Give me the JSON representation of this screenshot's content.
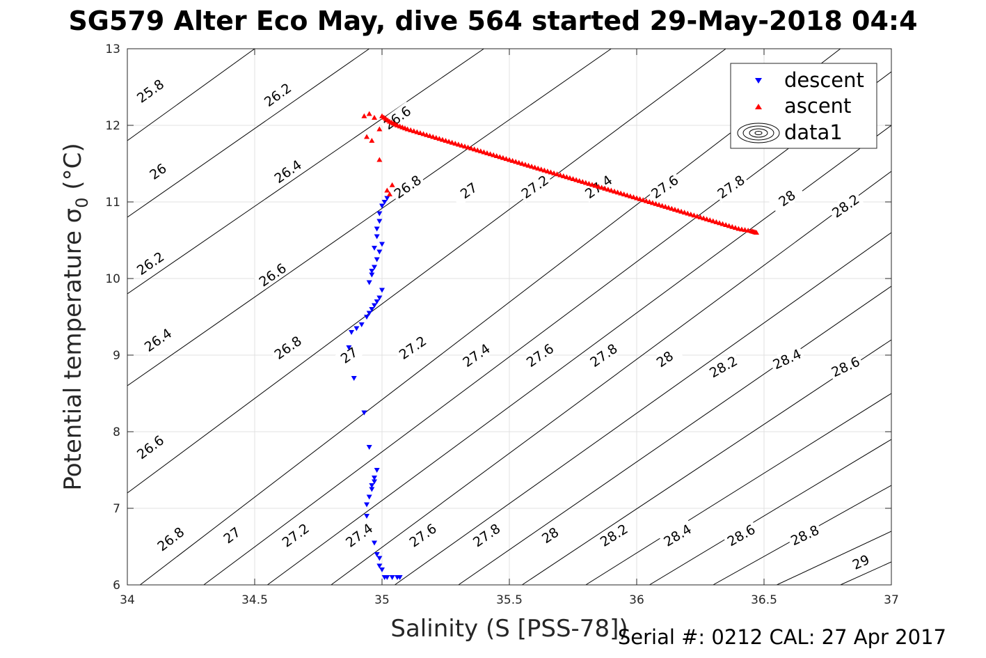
{
  "header": {
    "title": "SG579 Alter Eco May, dive 564 started 29-May-2018 04:4"
  },
  "footer": {
    "serial": "Serial #: 0212  CAL: 27 Apr 2017"
  },
  "chart_data": {
    "type": "scatter",
    "title": "SG579 Alter Eco May, dive 564 started 29-May-2018 04:4",
    "xlabel": "Salinity (S [PSS-78])",
    "ylabel": "Potential temperature σ0 (°C)",
    "xlim": [
      34,
      37
    ],
    "ylim": [
      6,
      13
    ],
    "xticks": [
      34,
      34.5,
      35,
      35.5,
      36,
      36.5,
      37
    ],
    "yticks": [
      6,
      7,
      8,
      9,
      10,
      11,
      12,
      13
    ],
    "grid": true,
    "legend_position": "top-right",
    "legend": [
      "descent",
      "ascent",
      "data1"
    ],
    "colors": {
      "descent": "#0000ff",
      "ascent": "#ff0000",
      "contour": "#000000",
      "grid": "#e0e0e0"
    },
    "series": [
      {
        "name": "descent",
        "marker": "down-triangle",
        "x": [
          35.02,
          35.01,
          35.0,
          34.99,
          34.99,
          34.98,
          34.98,
          34.97,
          35.0,
          34.99,
          34.98,
          34.97,
          34.96,
          34.96,
          34.95,
          35.0,
          34.99,
          34.98,
          34.97,
          34.96,
          34.95,
          34.94,
          34.92,
          34.9,
          34.88,
          34.87,
          34.89,
          34.93,
          34.95,
          34.98,
          34.97,
          34.97,
          34.96,
          34.96,
          34.95,
          34.94,
          34.94,
          34.97,
          34.98,
          34.99,
          34.99,
          35.0,
          35.01,
          35.02,
          35.04,
          35.06,
          35.07
        ],
        "y": [
          11.05,
          11.0,
          10.95,
          10.85,
          10.75,
          10.65,
          10.55,
          10.4,
          10.45,
          10.35,
          10.25,
          10.15,
          10.1,
          10.05,
          9.95,
          9.85,
          9.75,
          9.7,
          9.65,
          9.6,
          9.55,
          9.5,
          9.4,
          9.35,
          9.3,
          9.1,
          8.7,
          8.25,
          7.8,
          7.5,
          7.4,
          7.35,
          7.3,
          7.25,
          7.15,
          7.05,
          6.9,
          6.55,
          6.4,
          6.35,
          6.25,
          6.2,
          6.1,
          6.1,
          6.1,
          6.1,
          6.1
        ]
      },
      {
        "name": "ascent",
        "marker": "up-triangle",
        "x": [
          34.93,
          34.95,
          34.97,
          34.99,
          34.94,
          34.96,
          34.99,
          35.02,
          35.03,
          35.04,
          35.0,
          35.03,
          35.06,
          35.1,
          35.15,
          35.2,
          35.25,
          35.3,
          35.35,
          35.4,
          35.45,
          35.5,
          35.55,
          35.6,
          35.65,
          35.7,
          35.75,
          35.8,
          35.85,
          35.9,
          35.95,
          36.0,
          36.05,
          36.1,
          36.15,
          36.2,
          36.25,
          36.3,
          36.35,
          36.4,
          36.45,
          36.47
        ],
        "y": [
          12.12,
          12.15,
          12.1,
          11.55,
          11.85,
          11.8,
          11.95,
          11.15,
          11.1,
          11.22,
          12.12,
          12.05,
          12.0,
          11.95,
          11.9,
          11.85,
          11.8,
          11.75,
          11.7,
          11.65,
          11.6,
          11.55,
          11.5,
          11.45,
          11.4,
          11.35,
          11.3,
          11.25,
          11.2,
          11.15,
          11.1,
          11.05,
          11.0,
          10.95,
          10.9,
          10.85,
          10.8,
          10.75,
          10.7,
          10.65,
          10.62,
          10.6
        ]
      }
    ],
    "contours": [
      {
        "label": "25.8",
        "x1": 34.0,
        "y1": 11.8,
        "x2": 34.5,
        "y2": 13.0,
        "lx": 34.09,
        "ly": 12.45
      },
      {
        "label": "26",
        "x1": 34.0,
        "y1": 10.8,
        "x2": 34.95,
        "y2": 13.0,
        "lx": 34.12,
        "ly": 11.4
      },
      {
        "label": "26.2",
        "x1": 34.0,
        "y1": 9.8,
        "x2": 35.4,
        "y2": 13.0,
        "lx": 34.09,
        "ly": 10.2
      },
      {
        "label": "26.4",
        "x1": 34.0,
        "y1": 8.6,
        "x2": 35.9,
        "y2": 13.0,
        "lx": 34.12,
        "ly": 9.2
      },
      {
        "label": "26.6",
        "x1": 34.0,
        "y1": 7.2,
        "x2": 36.35,
        "y2": 13.0,
        "lx": 34.09,
        "ly": 7.8
      },
      {
        "label": "26.8",
        "x1": 34.05,
        "y1": 6.0,
        "x2": 36.8,
        "y2": 13.0,
        "lx": 34.17,
        "ly": 6.6
      },
      {
        "label": "27",
        "x1": 34.3,
        "y1": 6.0,
        "x2": 37.0,
        "y2": 12.7,
        "lx": 34.41,
        "ly": 6.65
      },
      {
        "label": "27.2",
        "x1": 34.55,
        "y1": 6.0,
        "x2": 37.0,
        "y2": 12.0,
        "lx": 34.66,
        "ly": 6.65
      },
      {
        "label": "27.4",
        "x1": 34.8,
        "y1": 6.0,
        "x2": 37.0,
        "y2": 11.4,
        "lx": 34.91,
        "ly": 6.65
      },
      {
        "label": "27.6",
        "x1": 35.05,
        "y1": 6.0,
        "x2": 37.0,
        "y2": 10.6,
        "lx": 35.16,
        "ly": 6.65
      },
      {
        "label": "27.8",
        "x1": 35.3,
        "y1": 6.0,
        "x2": 37.0,
        "y2": 9.9,
        "lx": 35.41,
        "ly": 6.65
      },
      {
        "label": "28",
        "x1": 35.55,
        "y1": 6.0,
        "x2": 37.0,
        "y2": 9.2,
        "lx": 35.66,
        "ly": 6.65
      },
      {
        "label": "28.2",
        "x1": 35.8,
        "y1": 6.0,
        "x2": 37.0,
        "y2": 8.5,
        "lx": 35.91,
        "ly": 6.65
      },
      {
        "label": "28.4",
        "x1": 36.05,
        "y1": 6.0,
        "x2": 37.0,
        "y2": 7.9,
        "lx": 36.16,
        "ly": 6.65
      },
      {
        "label": "28.6",
        "x1": 36.3,
        "y1": 6.0,
        "x2": 37.0,
        "y2": 7.3,
        "lx": 36.41,
        "ly": 6.65
      },
      {
        "label": "28.8",
        "x1": 36.55,
        "y1": 6.0,
        "x2": 37.0,
        "y2": 6.7,
        "lx": 36.66,
        "ly": 6.65
      },
      {
        "label": "29",
        "x1": 36.8,
        "y1": 6.0,
        "x2": 37.0,
        "y2": 6.3,
        "lx": 36.88,
        "ly": 6.3
      }
    ],
    "extra_contour_labels": [
      {
        "label": "26.2",
        "lx": 34.59,
        "ly": 12.4
      },
      {
        "label": "26.4",
        "lx": 34.63,
        "ly": 11.4
      },
      {
        "label": "26.6",
        "lx": 34.57,
        "ly": 10.05
      },
      {
        "label": "26.8",
        "lx": 34.63,
        "ly": 9.1
      },
      {
        "label": "27",
        "lx": 34.87,
        "ly": 9.0
      },
      {
        "label": "27.2",
        "lx": 35.12,
        "ly": 9.1
      },
      {
        "label": "27.4",
        "lx": 35.37,
        "ly": 9.0
      },
      {
        "label": "27.6",
        "lx": 35.62,
        "ly": 9.0
      },
      {
        "label": "27.8",
        "lx": 35.87,
        "ly": 9.0
      },
      {
        "label": "28",
        "lx": 36.11,
        "ly": 8.95
      },
      {
        "label": "28.2",
        "lx": 36.34,
        "ly": 8.85
      },
      {
        "label": "28.4",
        "lx": 36.59,
        "ly": 8.95
      },
      {
        "label": "28.6",
        "lx": 36.82,
        "ly": 8.85
      },
      {
        "label": "26.6",
        "lx": 35.06,
        "ly": 12.1
      },
      {
        "label": "26.8",
        "lx": 35.1,
        "ly": 11.2
      },
      {
        "label": "27",
        "lx": 35.34,
        "ly": 11.15
      },
      {
        "label": "27.2",
        "lx": 35.6,
        "ly": 11.2
      },
      {
        "label": "27.4",
        "lx": 35.85,
        "ly": 11.2
      },
      {
        "label": "27.6",
        "lx": 36.11,
        "ly": 11.2
      },
      {
        "label": "27.8",
        "lx": 36.37,
        "ly": 11.2
      },
      {
        "label": "28",
        "lx": 36.59,
        "ly": 11.05
      },
      {
        "label": "28.2",
        "lx": 36.82,
        "ly": 10.95
      }
    ]
  }
}
